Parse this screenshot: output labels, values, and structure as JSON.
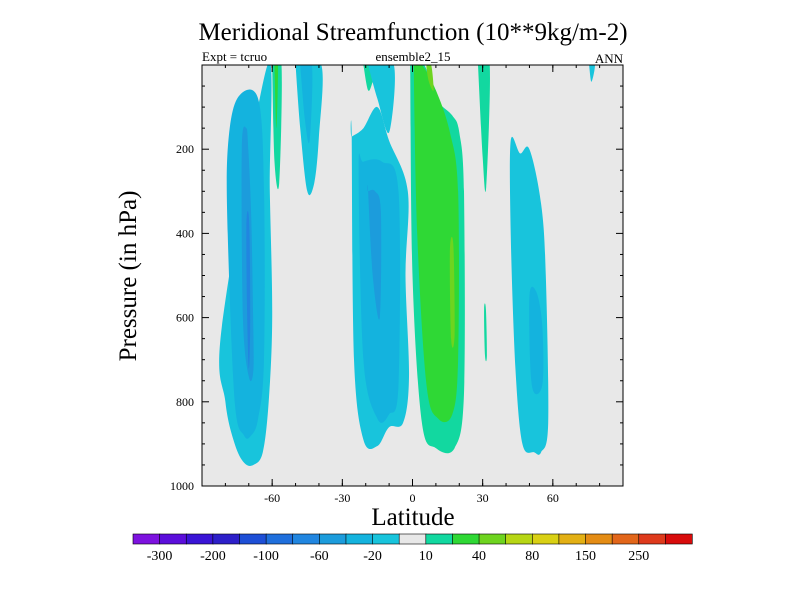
{
  "chart_data": {
    "type": "contour",
    "title": "Meridional Streamfunction (10**9kg/m-2)",
    "left_label": "Expt = tcruo",
    "center_label": "ensemble2_15",
    "right_label": "ANN",
    "xlabel": "Latitude",
    "ylabel": "Pressure (in hPa)",
    "xlim": [
      -90,
      90
    ],
    "ylim": [
      1000,
      0
    ],
    "x_ticks": [
      -60,
      -30,
      0,
      30,
      60
    ],
    "x_tick_labels": [
      "-60",
      "-30",
      "0",
      "30",
      "60"
    ],
    "y_ticks": [
      200,
      400,
      600,
      800,
      1000
    ],
    "y_tick_labels": [
      "200",
      "400",
      "600",
      "800",
      "1000"
    ],
    "background_color": "#e8e8e8",
    "colorbar": {
      "colors": [
        "#7d12df",
        "#5b0edb",
        "#3a14d6",
        "#2d1fc9",
        "#1e4fd6",
        "#1f6fdc",
        "#2186e0",
        "#1c9cdc",
        "#14b3de",
        "#18c4dc",
        "#e8e8e8",
        "#12d8a0",
        "#2fd835",
        "#6ed41f",
        "#b7d614",
        "#d9d014",
        "#e3b014",
        "#e48c14",
        "#e2661a",
        "#de3a1c",
        "#d80c0c"
      ],
      "labels": [
        "-300",
        "-200",
        "-100",
        "-60",
        "-20",
        "10",
        "40",
        "80",
        "150",
        "250"
      ],
      "label_boundary_index": [
        1,
        3,
        5,
        7,
        9,
        11,
        13,
        15,
        17,
        19
      ]
    },
    "regions": [
      {
        "name": "sh-cell-outer",
        "value_range": "-20 to 10",
        "color": "#18c4dc",
        "lat": [
          -81.5,
          -80,
          -76,
          -72,
          -68,
          -64,
          -61.5,
          -60,
          -61,
          -62
        ],
        "p": [
          620,
          800,
          900,
          945,
          950,
          920,
          800,
          600,
          300,
          0
        ],
        "lat_top": [
          -62,
          -81.5
        ]
      },
      {
        "name": "sh-cell-mid",
        "value_range": "-60 to -20",
        "color": "#14b3de",
        "lat": [
          -79,
          -76,
          -72,
          -69,
          -66,
          -63.5,
          -63.5,
          -66,
          -75,
          -79
        ],
        "p": [
          400,
          800,
          880,
          880,
          840,
          700,
          300,
          80,
          80,
          200
        ]
      },
      {
        "name": "sh-cell-core",
        "value_range": "-100 to -60",
        "color": "#1c9cdc",
        "lat": [
          -73,
          -71,
          -70.2,
          -69,
          -68.3,
          -68,
          -70,
          -72.5
        ],
        "p": [
          200,
          150,
          200,
          350,
          550,
          720,
          740,
          600
        ]
      },
      {
        "name": "sh-cell-max",
        "value_range": "< -100",
        "color": "#2186e0",
        "lat": [
          -71,
          -70.2,
          -69.6,
          -69.4,
          -70,
          -70.8
        ],
        "p": [
          380,
          350,
          420,
          620,
          720,
          560
        ]
      },
      {
        "name": "upper-sh-band",
        "value_range": "-20 to 10",
        "color": "#18c4dc",
        "lat": [
          -50,
          -48,
          -45,
          -42,
          -40,
          -39,
          -50
        ],
        "p": [
          0,
          150,
          300,
          280,
          170,
          0,
          0
        ]
      },
      {
        "name": "upper-sh-band-inner",
        "value_range": "-60 to -20",
        "color": "#14b3de",
        "lat": [
          -48,
          -46,
          -44,
          -43,
          -48
        ],
        "p": [
          0,
          130,
          180,
          0,
          0
        ]
      },
      {
        "name": "positive-strip-sh",
        "value_range": "10 to 40",
        "color": "#12d8a0",
        "lat": [
          -60,
          -59,
          -57,
          -56,
          -60
        ],
        "p": [
          0,
          230,
          280,
          0,
          0
        ]
      },
      {
        "name": "positive-strip-sh-inner",
        "value_range": "40 to 80",
        "color": "#2fd835",
        "lat": [
          -59,
          -58.2,
          -57.5,
          -59
        ],
        "p": [
          0,
          150,
          0,
          0
        ]
      },
      {
        "name": "tropical-sh-cell",
        "value_range": "-20 to 10",
        "color": "#18c4dc",
        "lat": [
          -26,
          -25,
          -21,
          -15,
          -10,
          -4,
          -1.5,
          -3,
          -2,
          -10,
          -15,
          -21,
          -26
        ],
        "p": [
          170,
          700,
          890,
          905,
          860,
          850,
          740,
          500,
          300,
          180,
          100,
          150,
          170
        ]
      },
      {
        "name": "tropical-sh-inner",
        "value_range": "-60 to -20",
        "color": "#14b3de",
        "lat": [
          -23,
          -21,
          -15,
          -10,
          -6,
          -6,
          -13,
          -21
        ],
        "p": [
          250,
          700,
          840,
          830,
          760,
          300,
          230,
          230
        ]
      },
      {
        "name": "tropical-sh-core",
        "value_range": "-100 to -60",
        "color": "#1c9cdc",
        "lat": [
          -19,
          -17,
          -14,
          -13.5,
          -16,
          -19
        ],
        "p": [
          300,
          500,
          600,
          350,
          300,
          300
        ]
      },
      {
        "name": "upper-tropic-pos",
        "value_range": "10 to 40",
        "color": "#12d8a0",
        "lat": [
          -21,
          -19,
          -17,
          -15,
          -21
        ],
        "p": [
          0,
          60,
          40,
          0,
          0
        ]
      },
      {
        "name": "upper-tropic-neg",
        "value_range": "-20 to 10",
        "color": "#18c4dc",
        "lat": [
          -19,
          -15,
          -10,
          -8,
          -19
        ],
        "p": [
          0,
          80,
          160,
          0,
          0
        ]
      },
      {
        "name": "nh-hadley",
        "value_range": "10 to 40",
        "color": "#12d8a0",
        "lat": [
          -1,
          0,
          4,
          10,
          18,
          22,
          22,
          20,
          17,
          10,
          5,
          -1
        ],
        "p": [
          0,
          500,
          850,
          910,
          910,
          780,
          300,
          160,
          120,
          80,
          0,
          0
        ]
      },
      {
        "name": "nh-hadley-inner",
        "value_range": "40 to 80",
        "color": "#2fd835",
        "lat": [
          0.5,
          2,
          6,
          11,
          17,
          19.5,
          19.5,
          16,
          10,
          4,
          0.5
        ],
        "p": [
          0,
          400,
          760,
          840,
          830,
          700,
          300,
          160,
          60,
          0,
          0
        ]
      },
      {
        "name": "nh-hadley-core",
        "value_range": "80 to 150",
        "color": "#6ed41f",
        "lat": [
          16,
          17.5,
          18,
          16.5
        ],
        "p": [
          440,
          430,
          640,
          650
        ]
      },
      {
        "name": "nh-upper-pos",
        "value_range": "80 to 150",
        "color": "#6ed41f",
        "lat": [
          6,
          7,
          9,
          8
        ],
        "p": [
          0,
          40,
          60,
          0
        ]
      },
      {
        "name": "nh-ferrel-sharp",
        "value_range": "10 to 40",
        "color": "#12d8a0",
        "lat": [
          28,
          30,
          31.5,
          33,
          28
        ],
        "p": [
          0,
          220,
          290,
          0,
          0
        ]
      },
      {
        "name": "nh-ferrel-strip",
        "value_range": "10 to 40",
        "color": "#12d8a0",
        "lat": [
          30.6,
          31.4,
          31.8,
          31
        ],
        "p": [
          580,
          580,
          690,
          690
        ]
      },
      {
        "name": "nh-ferrel",
        "value_range": "-20 to 10",
        "color": "#18c4dc",
        "lat": [
          42,
          46,
          50,
          55,
          57,
          58,
          55,
          52,
          47,
          44,
          42
        ],
        "p": [
          180,
          210,
          200,
          330,
          500,
          850,
          920,
          920,
          900,
          720,
          400
        ]
      },
      {
        "name": "nh-ferrel-inner",
        "value_range": "-60 to -20",
        "color": "#14b3de",
        "lat": [
          50,
          53,
          55.5,
          55.5,
          51
        ],
        "p": [
          550,
          540,
          620,
          760,
          760
        ]
      },
      {
        "name": "nh-polar-small",
        "value_range": "-20 to 10",
        "color": "#18c4dc",
        "lat": [
          75.5,
          76.5,
          78,
          75.5
        ],
        "p": [
          0,
          40,
          0,
          0
        ]
      }
    ]
  }
}
